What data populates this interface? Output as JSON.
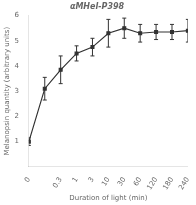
{
  "chart_data": {
    "type": "line",
    "title": "αMHel-P398",
    "xlabel": "Duration of light (min)",
    "ylabel": "Melanopsin quantity (arbitrary units)",
    "categories": [
      "0",
      null,
      "0.3",
      "1",
      "3",
      "10",
      "30",
      "60",
      "120",
      "180",
      "240"
    ],
    "values": [
      1.0,
      3.1,
      3.85,
      4.5,
      4.75,
      5.3,
      5.5,
      5.3,
      5.35,
      5.35,
      5.4
    ],
    "errors": [
      0.15,
      0.45,
      0.55,
      0.3,
      0.35,
      0.55,
      0.4,
      0.35,
      0.3,
      0.3,
      0.45
    ],
    "color": "#333333",
    "marker": "square",
    "line_style": "solid",
    "ylim": [
      0,
      6
    ],
    "yticks": [
      1,
      2,
      3,
      4,
      5,
      6
    ],
    "grid": false
  }
}
